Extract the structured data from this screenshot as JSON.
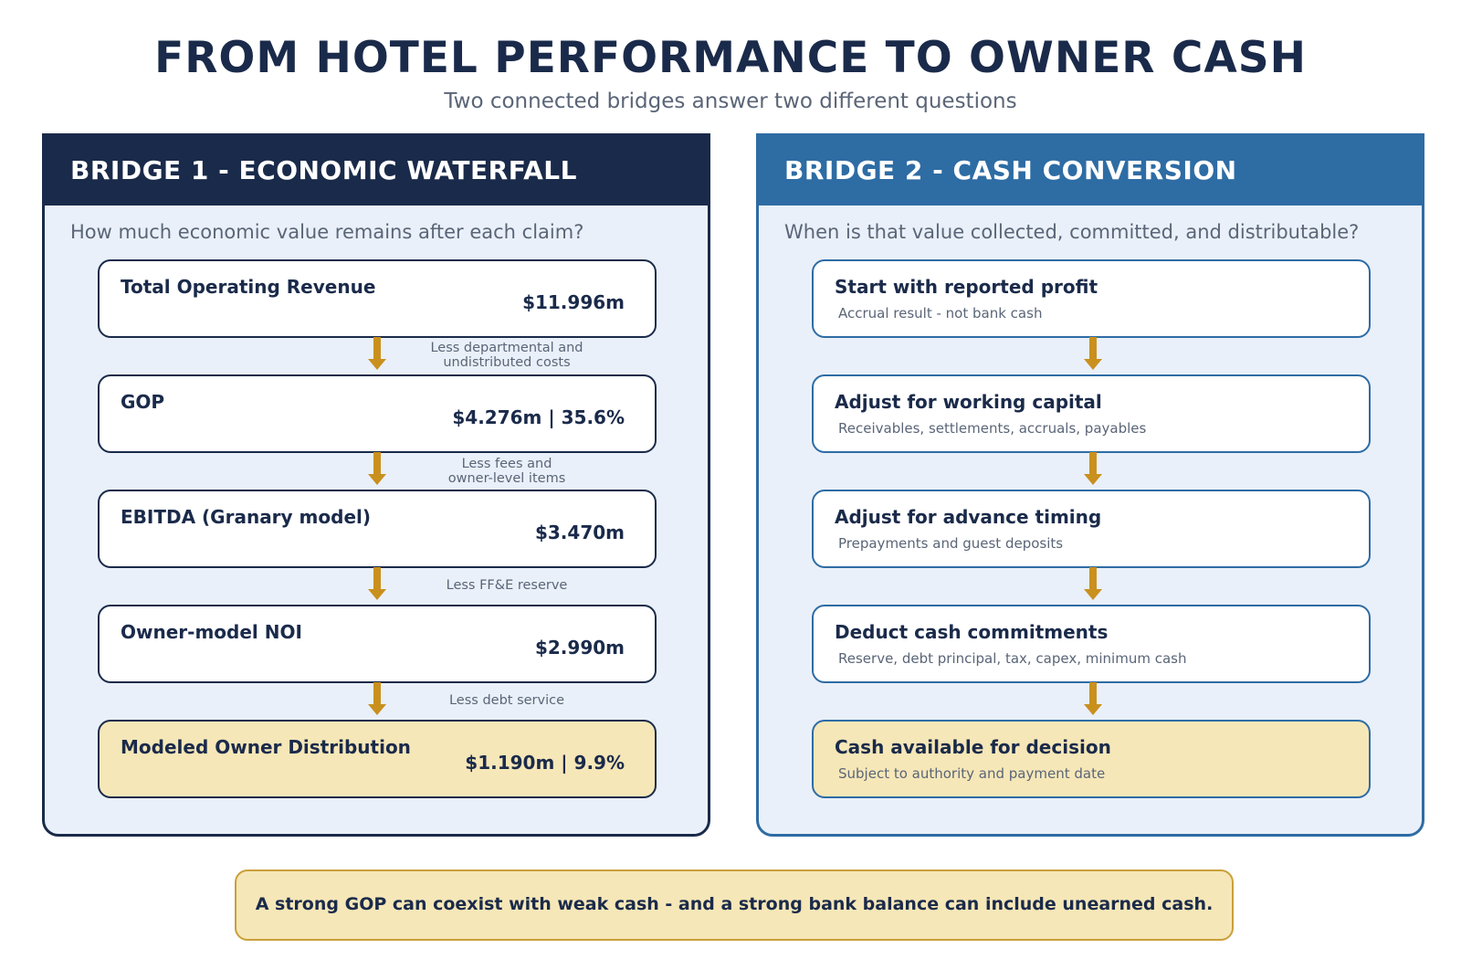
{
  "title": "FROM HOTEL PERFORMANCE TO OWNER CASH",
  "subtitle": "Two connected bridges answer two different questions",
  "bridge1": {
    "header": "BRIDGE 1 - ECONOMIC WATERFALL",
    "question": "How much economic value remains after each claim?",
    "steps": [
      {
        "label": "Total Operating Revenue",
        "value": "$11.996m"
      },
      {
        "label": "GOP",
        "value": "$4.276m | 35.6%"
      },
      {
        "label": "EBITDA (Granary model)",
        "value": "$3.470m"
      },
      {
        "label": "Owner-model NOI",
        "value": "$2.990m"
      },
      {
        "label": "Modeled Owner Distribution",
        "value": "$1.190m | 9.9%"
      }
    ],
    "transitions": [
      {
        "line1": "Less departmental and",
        "line2": "undistributed costs"
      },
      {
        "line1": "Less fees and",
        "line2": "owner-level items"
      },
      {
        "line1": "Less FF&E reserve",
        "line2": ""
      },
      {
        "line1": "Less debt service",
        "line2": ""
      }
    ]
  },
  "bridge2": {
    "header": "BRIDGE 2 - CASH CONVERSION",
    "question": "When is that value collected, committed, and distributable?",
    "steps": [
      {
        "label": "Start with reported profit",
        "sub": "Accrual result - not bank cash"
      },
      {
        "label": "Adjust for working capital",
        "sub": "Receivables, settlements, accruals, payables"
      },
      {
        "label": "Adjust for advance timing",
        "sub": "Prepayments and guest deposits"
      },
      {
        "label": "Deduct cash commitments",
        "sub": "Reserve, debt principal, tax, capex, minimum cash"
      },
      {
        "label": "Cash available for decision",
        "sub": "Subject to authority and payment date"
      }
    ]
  },
  "callout": "A strong GOP can coexist with weak cash - and a strong bank balance can include unearned cash.",
  "colors": {
    "navy": "#1a2a4a",
    "blue": "#2e6ca4",
    "panel_bg": "#e9f0f9",
    "gold_arrow": "#c9901e",
    "highlight": "#f6e7b8"
  }
}
